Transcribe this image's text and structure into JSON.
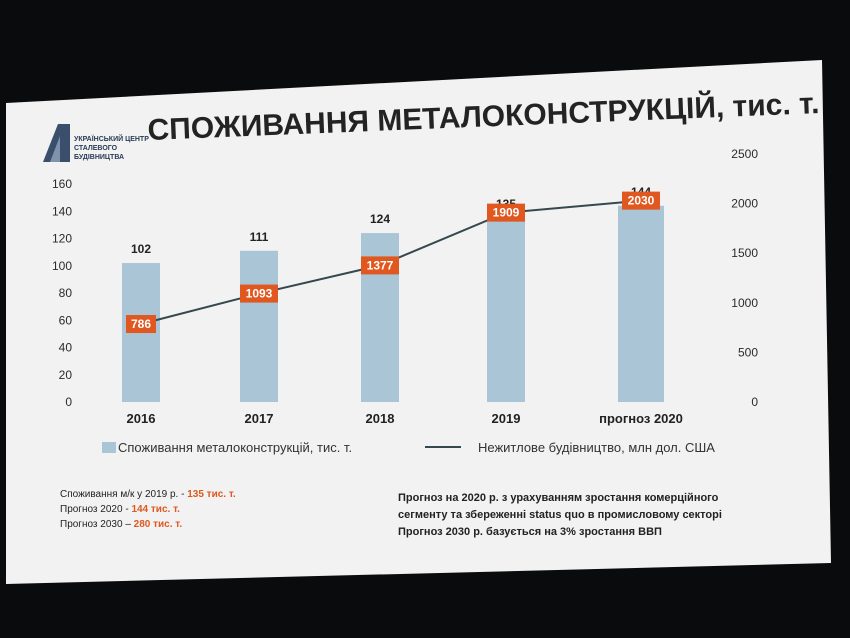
{
  "slide": {
    "title": "СПОЖИВАННЯ МЕТАЛОКОНСТРУКЦІЙ, тис. т.",
    "logo_lines": [
      "УКРАЇНСЬКИЙ ЦЕНТР",
      "СТАЛЕВОГО",
      "БУДІВНИЦТВА"
    ]
  },
  "chart_data": {
    "type": "bar",
    "categories": [
      "2016",
      "2017",
      "2018",
      "2019",
      "прогноз 2020"
    ],
    "series": [
      {
        "name": "Споживання металоконструкцій, тис. т.",
        "type": "bar",
        "axis": "left",
        "values": [
          102,
          111,
          124,
          135,
          144
        ]
      },
      {
        "name": "Нежитлове будівництво, млн дол. США",
        "type": "line",
        "axis": "right",
        "values": [
          786,
          1093,
          1377,
          1909,
          2030
        ]
      }
    ],
    "y_left": {
      "ticks": [
        "0",
        "20",
        "40",
        "60",
        "80",
        "100",
        "120",
        "140",
        "160"
      ],
      "lim": [
        0,
        160
      ]
    },
    "y_right": {
      "ticks": [
        "0",
        "500",
        "1000",
        "1500",
        "2000",
        "2500"
      ],
      "lim": [
        0,
        2500
      ]
    },
    "legend_position": "bottom",
    "colors": {
      "bar": "#aac6d6",
      "line": "#36474f",
      "marker": "#e0571f"
    }
  },
  "notes_left": [
    {
      "text": "Споживання м/к у 2019 р. - ",
      "highlight": "135 тис. т."
    },
    {
      "text": "Прогноз 2020 - ",
      "highlight": "144 тис. т."
    },
    {
      "text": "Прогноз 2030 – ",
      "highlight": "280 тис. т."
    }
  ],
  "notes_right": [
    "Прогноз на 2020 р. з урахуванням зростання комерційного",
    "сегменту та збереженні status quo в промисловому секторі",
    "Прогноз 2030 р. базується на 3% зростання ВВП"
  ]
}
